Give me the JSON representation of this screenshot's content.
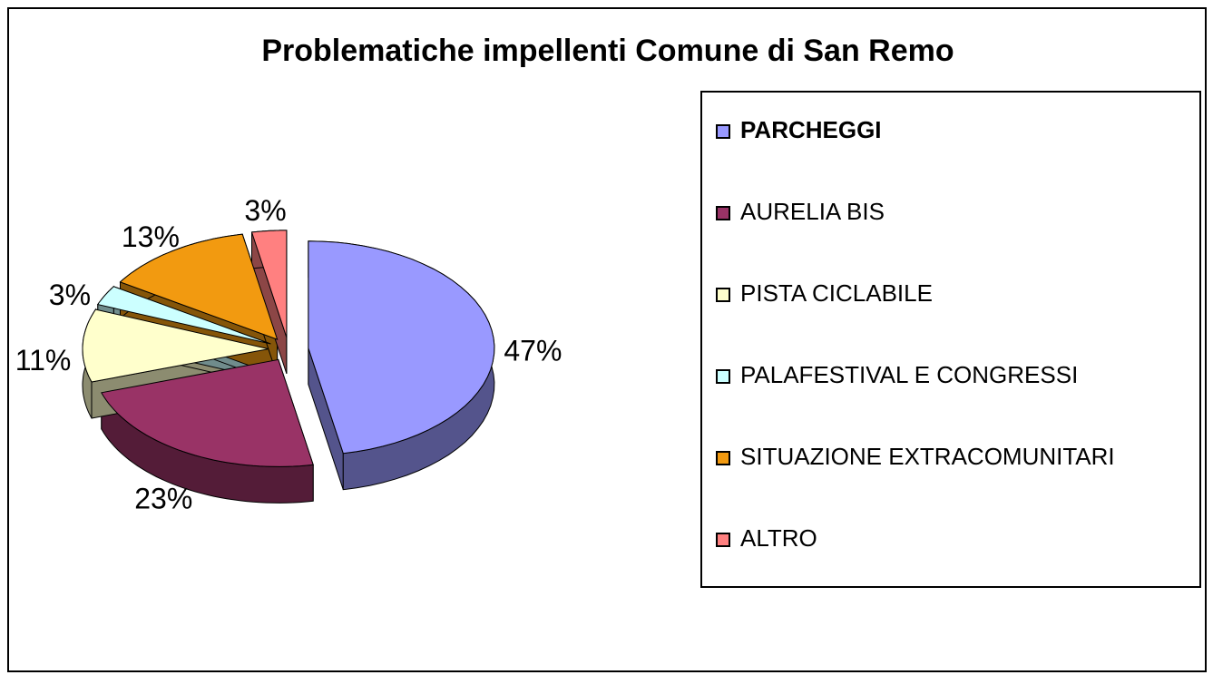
{
  "chart_data": {
    "type": "pie",
    "title": "Problematiche impellenti Comune di San Remo",
    "categories": [
      "PARCHEGGI",
      "AURELIA BIS",
      "PISTA CICLABILE",
      "PALAFESTIVAL E CONGRESSI",
      "SITUAZIONE EXTRACOMUNITARI",
      "ALTRO"
    ],
    "series": [
      {
        "values": [
          47,
          23,
          11,
          3,
          13,
          3
        ],
        "value_labels": [
          "47%",
          "23%",
          "11%",
          "3%",
          "13%",
          "3%"
        ],
        "colors": [
          "#9999ff",
          "#993366",
          "#ffffcc",
          "#ccffff",
          "#f29a10",
          "#ff8080"
        ]
      }
    ],
    "legend": "right"
  }
}
